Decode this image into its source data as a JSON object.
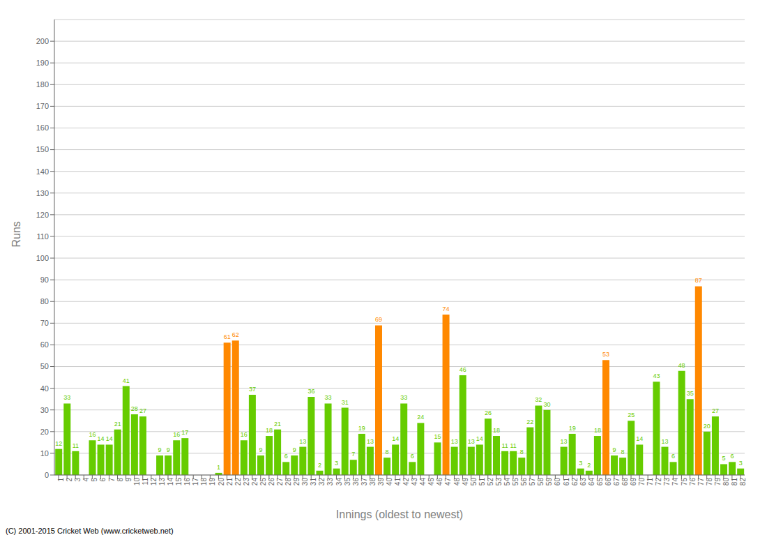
{
  "chart_data": {
    "type": "bar",
    "xlabel": "Innings (oldest to newest)",
    "ylabel": "Runs",
    "categories": [
      "1",
      "2",
      "3",
      "4",
      "5",
      "6",
      "7",
      "8",
      "9",
      "10",
      "11",
      "12",
      "13",
      "14",
      "15",
      "16",
      "17",
      "18",
      "19",
      "20",
      "21",
      "22",
      "23",
      "24",
      "25",
      "26",
      "27",
      "28",
      "29",
      "30",
      "31",
      "32",
      "33",
      "34",
      "35",
      "36",
      "37",
      "38",
      "39",
      "40",
      "41",
      "42",
      "43",
      "44",
      "45",
      "46",
      "47",
      "48",
      "49",
      "50",
      "51",
      "52",
      "53",
      "54",
      "55",
      "56",
      "57",
      "58",
      "59",
      "60",
      "61",
      "62",
      "63",
      "64",
      "65",
      "66",
      "67",
      "68",
      "69",
      "70",
      "71",
      "72",
      "73",
      "74",
      "75",
      "76",
      "77",
      "78",
      "79",
      "80",
      "81",
      "82"
    ],
    "values": [
      12,
      33,
      11,
      0,
      16,
      14,
      14,
      21,
      41,
      28,
      27,
      0,
      9,
      9,
      16,
      17,
      0,
      0,
      0,
      1,
      61,
      62,
      16,
      37,
      9,
      18,
      21,
      6,
      9,
      13,
      36,
      2,
      33,
      3,
      31,
      7,
      19,
      13,
      69,
      8,
      14,
      33,
      6,
      24,
      0,
      15,
      74,
      13,
      46,
      13,
      14,
      26,
      18,
      11,
      11,
      8,
      22,
      32,
      30,
      0,
      13,
      19,
      3,
      2,
      18,
      53,
      9,
      8,
      25,
      14,
      0,
      43,
      13,
      6,
      48,
      35,
      87,
      20,
      27,
      5,
      6,
      3
    ],
    "colors": [
      "#66cc00",
      "#66cc00",
      "#66cc00",
      "#66cc00",
      "#66cc00",
      "#66cc00",
      "#66cc00",
      "#66cc00",
      "#66cc00",
      "#66cc00",
      "#66cc00",
      "#66cc00",
      "#66cc00",
      "#66cc00",
      "#66cc00",
      "#66cc00",
      "#66cc00",
      "#66cc00",
      "#66cc00",
      "#66cc00",
      "#ff8800",
      "#ff8800",
      "#66cc00",
      "#66cc00",
      "#66cc00",
      "#66cc00",
      "#66cc00",
      "#66cc00",
      "#66cc00",
      "#66cc00",
      "#66cc00",
      "#66cc00",
      "#66cc00",
      "#66cc00",
      "#66cc00",
      "#66cc00",
      "#66cc00",
      "#66cc00",
      "#ff8800",
      "#66cc00",
      "#66cc00",
      "#66cc00",
      "#66cc00",
      "#66cc00",
      "#66cc00",
      "#66cc00",
      "#ff8800",
      "#66cc00",
      "#66cc00",
      "#66cc00",
      "#66cc00",
      "#66cc00",
      "#66cc00",
      "#66cc00",
      "#66cc00",
      "#66cc00",
      "#66cc00",
      "#66cc00",
      "#66cc00",
      "#66cc00",
      "#66cc00",
      "#66cc00",
      "#66cc00",
      "#66cc00",
      "#66cc00",
      "#ff8800",
      "#66cc00",
      "#66cc00",
      "#66cc00",
      "#66cc00",
      "#66cc00",
      "#66cc00",
      "#66cc00",
      "#66cc00",
      "#66cc00",
      "#66cc00",
      "#ff8800",
      "#66cc00",
      "#66cc00",
      "#66cc00",
      "#66cc00",
      "#66cc00"
    ],
    "ylim": [
      0,
      210
    ],
    "yticks": [
      0,
      10,
      20,
      30,
      40,
      50,
      60,
      70,
      80,
      90,
      100,
      110,
      120,
      130,
      140,
      150,
      160,
      170,
      180,
      190,
      200
    ],
    "grid": true,
    "data_labels": true,
    "annotations": [
      "(C) 2001-2015 Cricket Web (www.cricketweb.net)"
    ]
  }
}
